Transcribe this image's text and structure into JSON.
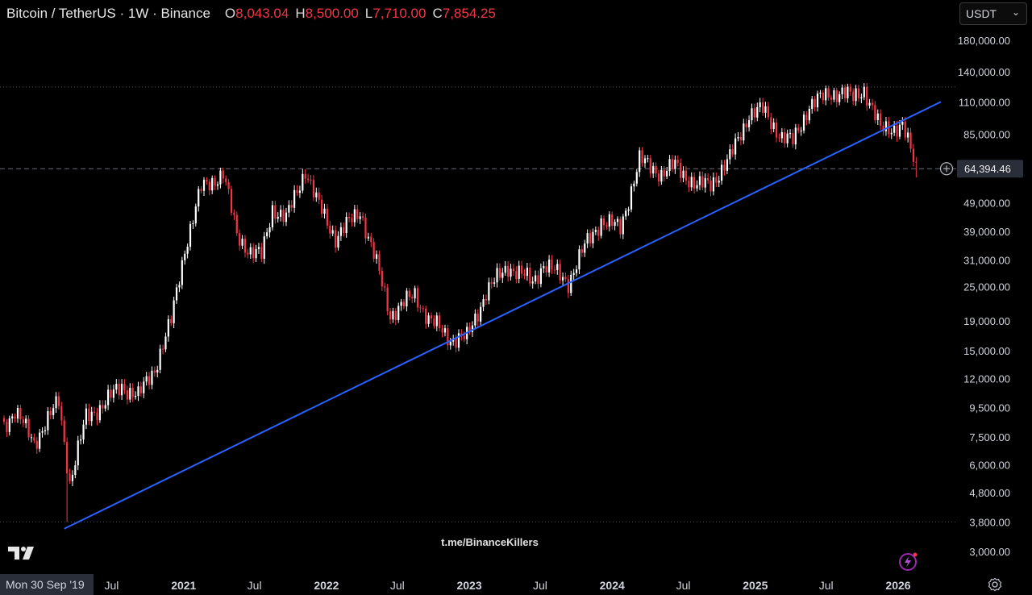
{
  "legend": {
    "symbol": "Bitcoin / TetherUS · 1W · Binance",
    "open_label": "O",
    "open": "8,043.04",
    "high_label": "H",
    "high": "8,500.00",
    "low_label": "L",
    "low": "7,710.00",
    "close_label": "C",
    "close": "7,854.25"
  },
  "currency": {
    "selected": "USDT"
  },
  "watermark": "t.me/BinanceKillers",
  "cursor_date": "Mon 30 Sep '19",
  "colors": {
    "up": "#ffffff",
    "down": "#f23645",
    "trendline": "#2962ff",
    "background": "#000000",
    "axis_text": "#d1d4dc"
  },
  "icons": [
    "tradingview-logo-icon",
    "settings-gear-icon",
    "lightning-bolt-icon",
    "crosshair-plus-icon"
  ],
  "chart_data": {
    "type": "candlestick",
    "y_scale": "log",
    "ylim": [
      2700,
      200000
    ],
    "y_ticks": [
      3000,
      3800,
      4800,
      6000,
      7500,
      9500,
      12000,
      15000,
      19000,
      25000,
      31000,
      39000,
      49000,
      64394.46,
      85000,
      110000,
      140000,
      180000
    ],
    "y_tick_labels": [
      "3,000.00",
      "3,800.00",
      "4,800.00",
      "6,000.00",
      "7,500.00",
      "9,500.00",
      "12,000.00",
      "15,000.00",
      "19,000.00",
      "25,000.00",
      "31,000.00",
      "39,000.00",
      "49,000.00",
      "64,394.46",
      "85,000.00",
      "110,000.00",
      "140,000.00",
      "180,000.00"
    ],
    "current_price": 64394.46,
    "current_price_label": "64,394.46",
    "x_range": [
      "2019-09-30",
      "2026-04-20"
    ],
    "x_ticks": [
      {
        "date": "2020-07-01",
        "label": "Jul",
        "major": false
      },
      {
        "date": "2021-01-01",
        "label": "2021",
        "major": true
      },
      {
        "date": "2021-07-01",
        "label": "Jul",
        "major": false
      },
      {
        "date": "2022-01-01",
        "label": "2022",
        "major": true
      },
      {
        "date": "2022-07-01",
        "label": "Jul",
        "major": false
      },
      {
        "date": "2023-01-01",
        "label": "2023",
        "major": true
      },
      {
        "date": "2023-07-01",
        "label": "Jul",
        "major": false
      },
      {
        "date": "2024-01-01",
        "label": "2024",
        "major": true
      },
      {
        "date": "2024-07-01",
        "label": "Jul",
        "major": false
      },
      {
        "date": "2025-01-01",
        "label": "2025",
        "major": true
      },
      {
        "date": "2025-07-01",
        "label": "Jul",
        "major": false
      },
      {
        "date": "2026-01-01",
        "label": "2026",
        "major": true
      }
    ],
    "horizontal_lines": [
      {
        "price": 124000,
        "style": "dotted"
      },
      {
        "price": 64394.46,
        "style": "dashed"
      },
      {
        "price": 3800,
        "style": "dotted"
      }
    ],
    "trendline": {
      "start": {
        "date": "2020-03-02",
        "price": 3600
      },
      "end": {
        "date": "2026-04-20",
        "price": 110000
      }
    },
    "anchors": [
      {
        "date": "2019-09-30",
        "price": 8300
      },
      {
        "date": "2019-10-28",
        "price": 9200
      },
      {
        "date": "2019-12-16",
        "price": 7200
      },
      {
        "date": "2020-01-20",
        "price": 8600
      },
      {
        "date": "2020-02-17",
        "price": 10000
      },
      {
        "date": "2020-03-16",
        "price": 5200
      },
      {
        "date": "2020-04-27",
        "price": 8800
      },
      {
        "date": "2020-06-01",
        "price": 9500
      },
      {
        "date": "2020-07-27",
        "price": 11300
      },
      {
        "date": "2020-09-07",
        "price": 10400
      },
      {
        "date": "2020-10-19",
        "price": 13000
      },
      {
        "date": "2020-11-30",
        "price": 19000
      },
      {
        "date": "2021-01-04",
        "price": 34000
      },
      {
        "date": "2021-02-15",
        "price": 55000
      },
      {
        "date": "2021-04-12",
        "price": 62000
      },
      {
        "date": "2021-05-17",
        "price": 38000
      },
      {
        "date": "2021-06-21",
        "price": 33000
      },
      {
        "date": "2021-07-19",
        "price": 32000
      },
      {
        "date": "2021-08-16",
        "price": 47000
      },
      {
        "date": "2021-09-20",
        "price": 43000
      },
      {
        "date": "2021-11-08",
        "price": 64000
      },
      {
        "date": "2021-12-06",
        "price": 50000
      },
      {
        "date": "2022-01-24",
        "price": 37000
      },
      {
        "date": "2022-03-28",
        "price": 46000
      },
      {
        "date": "2022-05-09",
        "price": 30000
      },
      {
        "date": "2022-06-13",
        "price": 20000
      },
      {
        "date": "2022-08-15",
        "price": 23500
      },
      {
        "date": "2022-09-19",
        "price": 19300
      },
      {
        "date": "2022-11-14",
        "price": 16500
      },
      {
        "date": "2022-12-26",
        "price": 16600
      },
      {
        "date": "2023-02-13",
        "price": 24000
      },
      {
        "date": "2023-04-10",
        "price": 29500
      },
      {
        "date": "2023-06-12",
        "price": 26000
      },
      {
        "date": "2023-07-10",
        "price": 30000
      },
      {
        "date": "2023-09-11",
        "price": 26000
      },
      {
        "date": "2023-10-23",
        "price": 34500
      },
      {
        "date": "2023-12-04",
        "price": 42500
      },
      {
        "date": "2024-01-22",
        "price": 40000
      },
      {
        "date": "2024-03-11",
        "price": 69000
      },
      {
        "date": "2024-05-06",
        "price": 62000
      },
      {
        "date": "2024-06-10",
        "price": 66000
      },
      {
        "date": "2024-08-05",
        "price": 56000
      },
      {
        "date": "2024-09-09",
        "price": 57000
      },
      {
        "date": "2024-10-28",
        "price": 70000
      },
      {
        "date": "2024-12-16",
        "price": 100000
      },
      {
        "date": "2025-01-20",
        "price": 103000
      },
      {
        "date": "2025-03-10",
        "price": 83000
      },
      {
        "date": "2025-04-07",
        "price": 80000
      },
      {
        "date": "2025-05-19",
        "price": 107000
      },
      {
        "date": "2025-07-14",
        "price": 118000
      },
      {
        "date": "2025-08-11",
        "price": 119000
      },
      {
        "date": "2025-09-08",
        "price": 113000
      },
      {
        "date": "2025-10-06",
        "price": 122000
      },
      {
        "date": "2025-11-17",
        "price": 88000
      },
      {
        "date": "2026-01-12",
        "price": 91000
      },
      {
        "date": "2026-02-16",
        "price": 64394.46
      }
    ]
  }
}
